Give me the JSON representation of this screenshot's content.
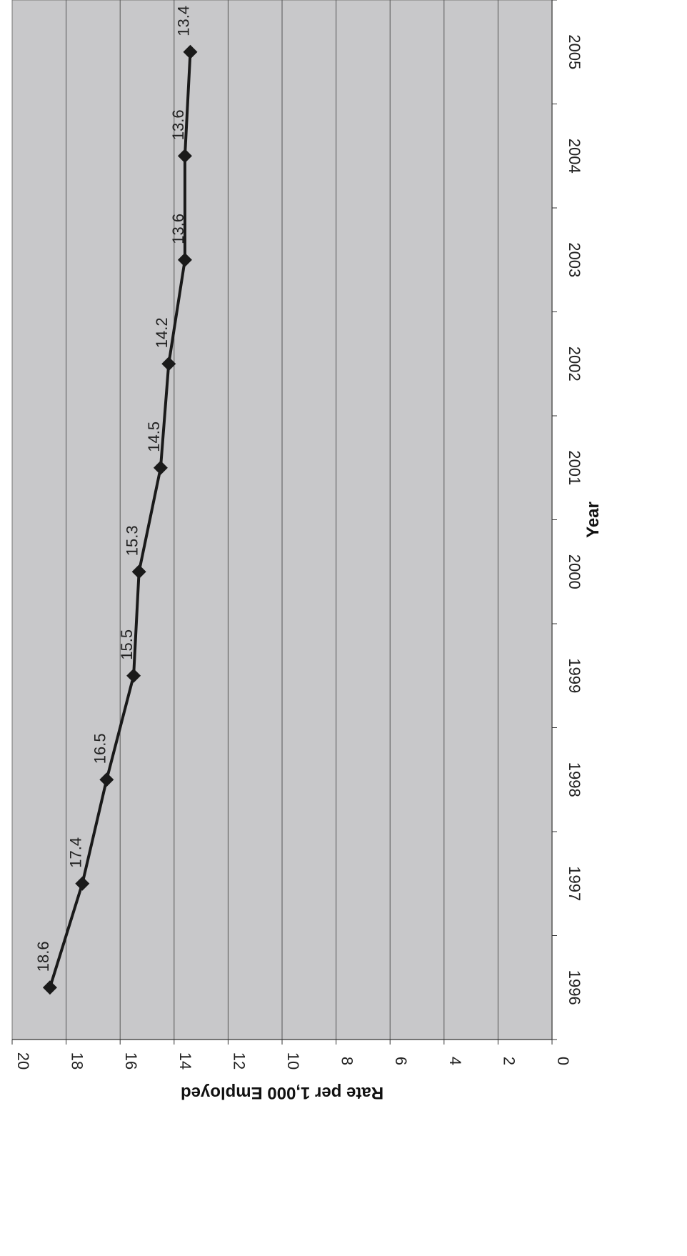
{
  "chart_data": {
    "type": "line",
    "orientation": "rotated-90-clockwise",
    "title": "",
    "xlabel": "Year",
    "ylabel": "Rate per 1,000 Employed",
    "x": [
      "1996",
      "1997",
      "1998",
      "1999",
      "2000",
      "2001",
      "2002",
      "2003",
      "2004",
      "2005"
    ],
    "series": [
      {
        "values": [
          18.6,
          17.4,
          16.5,
          15.5,
          15.3,
          14.5,
          14.2,
          13.6,
          13.6,
          13.4
        ]
      }
    ],
    "data_labels": [
      "18.6",
      "17.4",
      "16.5",
      "15.5",
      "15.3",
      "14.5",
      "14.2",
      "13.6",
      "13.6",
      "13.4"
    ],
    "y_ticks": [
      "0",
      "2",
      "4",
      "6",
      "8",
      "10",
      "12",
      "14",
      "16",
      "18",
      "20"
    ],
    "ylim": [
      0,
      20
    ],
    "grid": true,
    "marker": "diamond",
    "colors": {
      "plot_background": "#c8c8ca",
      "gridline": "#555555",
      "line": "#1a1a1a"
    }
  }
}
